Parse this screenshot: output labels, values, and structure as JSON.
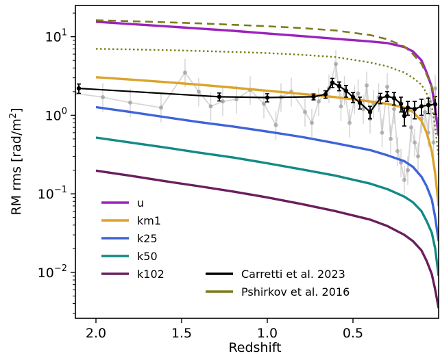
{
  "chart_data": {
    "type": "line",
    "xlabel": "Redshift",
    "ylabel_text": "RM rms [rad/m",
    "ylabel_sup": "2",
    "ylabel_close": "]",
    "x_reversed": true,
    "xlim": [
      2.12,
      0.0
    ],
    "ylog": true,
    "ylim": [
      0.0026,
      25
    ],
    "grid": false,
    "x_ticks": [
      {
        "value": 2.0,
        "label": "2.0"
      },
      {
        "value": 1.5,
        "label": "1.5"
      },
      {
        "value": 1.0,
        "label": "1.0"
      },
      {
        "value": 0.5,
        "label": "0.5"
      }
    ],
    "y_ticks": [
      {
        "value": 10,
        "base": "10",
        "exp": "1"
      },
      {
        "value": 1,
        "base": "10",
        "exp": "0"
      },
      {
        "value": 0.1,
        "base": "10",
        "exp": "−1"
      },
      {
        "value": 0.01,
        "base": "10",
        "exp": "−2"
      }
    ],
    "series": [
      {
        "name": "u",
        "color": "#9b23bc",
        "style": "solid",
        "x": [
          2.0,
          1.8,
          1.6,
          1.4,
          1.2,
          1.0,
          0.8,
          0.6,
          0.4,
          0.3,
          0.2,
          0.15,
          0.1,
          0.07,
          0.04,
          0.02,
          0.0
        ],
        "y": [
          15.5,
          14.5,
          13.6,
          12.7,
          11.9,
          11.0,
          10.2,
          9.4,
          8.7,
          8.3,
          7.4,
          6.5,
          5.0,
          3.5,
          2.3,
          1.2,
          0.55
        ]
      },
      {
        "name": "km1",
        "color": "#dba42b",
        "style": "solid",
        "x": [
          2.0,
          1.8,
          1.6,
          1.4,
          1.2,
          1.0,
          0.8,
          0.6,
          0.4,
          0.3,
          0.2,
          0.15,
          0.1,
          0.07,
          0.04,
          0.02,
          0.0
        ],
        "y": [
          3.05,
          2.85,
          2.65,
          2.45,
          2.25,
          2.05,
          1.87,
          1.7,
          1.5,
          1.4,
          1.25,
          1.1,
          0.85,
          0.6,
          0.35,
          0.18,
          0.07
        ]
      },
      {
        "name": "k25",
        "color": "#3f63d9",
        "style": "solid",
        "x": [
          2.0,
          1.8,
          1.6,
          1.4,
          1.2,
          1.0,
          0.8,
          0.6,
          0.4,
          0.3,
          0.2,
          0.15,
          0.1,
          0.07,
          0.04,
          0.02,
          0.0
        ],
        "y": [
          1.27,
          1.1,
          0.95,
          0.82,
          0.72,
          0.62,
          0.53,
          0.44,
          0.36,
          0.31,
          0.26,
          0.22,
          0.165,
          0.125,
          0.085,
          0.05,
          0.025
        ]
      },
      {
        "name": "k50",
        "color": "#128a87",
        "style": "solid",
        "x": [
          2.0,
          1.8,
          1.6,
          1.4,
          1.2,
          1.0,
          0.8,
          0.6,
          0.4,
          0.3,
          0.2,
          0.15,
          0.1,
          0.07,
          0.04,
          0.02,
          0.0
        ],
        "y": [
          0.52,
          0.45,
          0.39,
          0.335,
          0.29,
          0.245,
          0.205,
          0.17,
          0.135,
          0.115,
          0.092,
          0.078,
          0.06,
          0.045,
          0.032,
          0.02,
          0.009
        ]
      },
      {
        "name": "k102",
        "color": "#6a1e5e",
        "style": "solid",
        "x": [
          2.0,
          1.8,
          1.6,
          1.4,
          1.2,
          1.0,
          0.8,
          0.6,
          0.4,
          0.3,
          0.2,
          0.15,
          0.1,
          0.07,
          0.04,
          0.02,
          0.0
        ],
        "y": [
          0.197,
          0.17,
          0.145,
          0.125,
          0.107,
          0.09,
          0.074,
          0.06,
          0.047,
          0.039,
          0.03,
          0.025,
          0.019,
          0.014,
          0.0095,
          0.006,
          0.0035
        ]
      },
      {
        "name": "Carretti et al. 2023",
        "color": "#000000",
        "style": "errorbar",
        "x": [
          2.1,
          1.28,
          1.0,
          0.73,
          0.66,
          0.62,
          0.58,
          0.54,
          0.5,
          0.46,
          0.4,
          0.34,
          0.3,
          0.26,
          0.22,
          0.2,
          0.18,
          0.14,
          0.1,
          0.06,
          0.02
        ],
        "y": [
          2.2,
          1.72,
          1.68,
          1.72,
          1.85,
          2.6,
          2.35,
          2.05,
          1.7,
          1.45,
          1.1,
          1.65,
          1.75,
          1.65,
          1.4,
          0.98,
          1.25,
          1.2,
          1.3,
          1.35,
          1.38
        ],
        "err": [
          0.3,
          0.2,
          0.2,
          0.15,
          0.2,
          0.35,
          0.3,
          0.35,
          0.25,
          0.25,
          0.2,
          0.25,
          0.25,
          0.3,
          0.3,
          0.25,
          0.25,
          0.3,
          0.3,
          0.3,
          0.35
        ]
      },
      {
        "name": "Pshirkov et al. 2016",
        "color": "#7b7d18",
        "style": "dashed",
        "x": [
          2.0,
          1.8,
          1.6,
          1.4,
          1.2,
          1.0,
          0.8,
          0.6,
          0.4,
          0.3,
          0.2,
          0.15,
          0.1,
          0.07,
          0.04,
          0.02
        ],
        "y": [
          16.2,
          15.8,
          15.3,
          14.8,
          14.2,
          13.6,
          12.9,
          12.0,
          10.5,
          9.3,
          7.5,
          6.0,
          4.5,
          3.3,
          2.3,
          1.6
        ]
      }
    ],
    "extra_curve": {
      "color": "#7b7d18",
      "style": "dotted",
      "x": [
        2.0,
        1.8,
        1.6,
        1.4,
        1.2,
        1.0,
        0.8,
        0.6,
        0.4,
        0.3,
        0.2,
        0.15,
        0.1,
        0.07,
        0.04,
        0.02,
        0.0
      ],
      "y": [
        7.0,
        6.9,
        6.75,
        6.6,
        6.4,
        6.2,
        5.9,
        5.5,
        4.7,
        4.2,
        3.5,
        3.0,
        2.45,
        1.9,
        1.3,
        0.7,
        0.3
      ]
    },
    "background_points": {
      "color": "#b5b5b5",
      "x": [
        2.12,
        1.96,
        1.8,
        1.62,
        1.48,
        1.4,
        1.33,
        1.26,
        1.18,
        1.1,
        1.02,
        0.95,
        0.92,
        0.86,
        0.78,
        0.74,
        0.7,
        0.64,
        0.6,
        0.57,
        0.55,
        0.52,
        0.49,
        0.47,
        0.44,
        0.42,
        0.4,
        0.38,
        0.35,
        0.33,
        0.3,
        0.28,
        0.26,
        0.24,
        0.22,
        0.2,
        0.18,
        0.16,
        0.14,
        0.12,
        0.1,
        0.08,
        0.06,
        0.05,
        0.03,
        0.02,
        0.01
      ],
      "y": [
        1.9,
        1.7,
        1.45,
        1.25,
        3.5,
        2.0,
        1.3,
        1.5,
        1.6,
        2.1,
        1.4,
        0.75,
        1.7,
        2.0,
        1.1,
        0.8,
        1.5,
        2.2,
        4.5,
        1.3,
        2.1,
        0.8,
        1.6,
        1.9,
        1.2,
        2.4,
        0.9,
        1.4,
        1.7,
        0.6,
        2.3,
        0.5,
        1.2,
        0.35,
        0.25,
        0.15,
        0.2,
        0.7,
        0.45,
        0.3,
        0.9,
        1.1,
        0.6,
        1.5,
        0.45,
        2.2,
        0.9
      ]
    },
    "legend": {
      "placement": "lower-left",
      "columns": [
        [
          "u",
          "km1",
          "k25",
          "k50",
          "k102"
        ],
        [
          "Carretti et al. 2023",
          "Pshirkov et al. 2016"
        ]
      ]
    }
  }
}
